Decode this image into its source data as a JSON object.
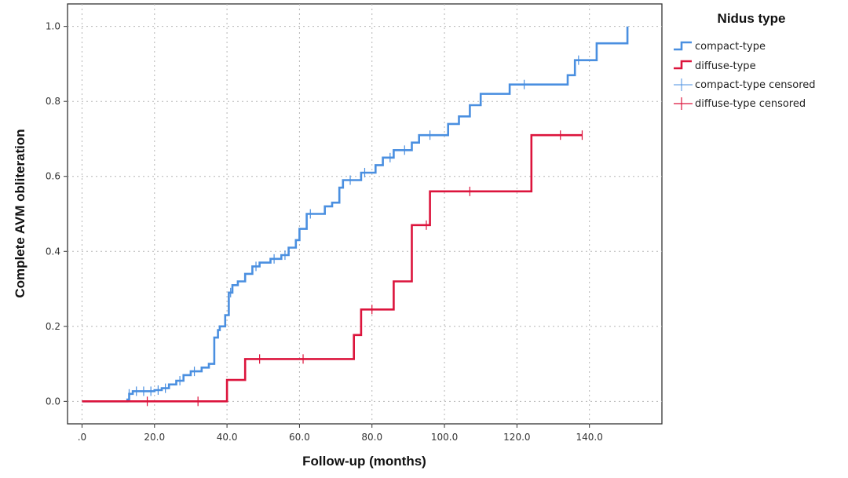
{
  "chart_data": {
    "type": "line",
    "step": true,
    "xlabel": "Follow-up (months)",
    "ylabel": "Complete AVM obliteration",
    "xlim": [
      -4,
      160
    ],
    "ylim": [
      -0.06,
      1.06
    ],
    "x_ticks": [
      0,
      20,
      40,
      60,
      80,
      100,
      120,
      140
    ],
    "x_tick_labels": [
      ".0",
      "20.0",
      "40.0",
      "60.0",
      "80.0",
      "100.0",
      "120.0",
      "140.0"
    ],
    "y_ticks": [
      0,
      0.2,
      0.4,
      0.6,
      0.8,
      1.0
    ],
    "y_tick_labels": [
      "0.0",
      "0.2",
      "0.4",
      "0.6",
      "0.8",
      "1.0"
    ],
    "grid": true,
    "legend": {
      "title": "Nidus type",
      "placement": "right",
      "entries": [
        "compact-type",
        "diffuse-type",
        "compact-type censored",
        "diffuse-type censored"
      ]
    },
    "series": [
      {
        "name": "compact-type",
        "color": "#4a8fe0",
        "steps": [
          [
            0,
            0
          ],
          [
            12.5,
            0.005
          ],
          [
            13,
            0.02
          ],
          [
            14,
            0.027
          ],
          [
            20,
            0.03
          ],
          [
            22,
            0.035
          ],
          [
            24,
            0.045
          ],
          [
            26,
            0.055
          ],
          [
            28,
            0.07
          ],
          [
            30,
            0.08
          ],
          [
            33,
            0.09
          ],
          [
            35,
            0.1
          ],
          [
            36.5,
            0.17
          ],
          [
            37.5,
            0.19
          ],
          [
            38,
            0.2
          ],
          [
            39.5,
            0.23
          ],
          [
            40.5,
            0.29
          ],
          [
            41.5,
            0.31
          ],
          [
            43,
            0.32
          ],
          [
            45,
            0.34
          ],
          [
            47,
            0.36
          ],
          [
            49,
            0.37
          ],
          [
            52,
            0.38
          ],
          [
            55,
            0.39
          ],
          [
            57,
            0.41
          ],
          [
            59,
            0.43
          ],
          [
            60,
            0.46
          ],
          [
            62,
            0.5
          ],
          [
            67,
            0.52
          ],
          [
            69,
            0.53
          ],
          [
            71,
            0.57
          ],
          [
            72,
            0.59
          ],
          [
            77,
            0.61
          ],
          [
            81,
            0.63
          ],
          [
            83,
            0.65
          ],
          [
            86,
            0.67
          ],
          [
            91,
            0.69
          ],
          [
            93,
            0.71
          ],
          [
            101,
            0.74
          ],
          [
            104,
            0.76
          ],
          [
            107,
            0.79
          ],
          [
            110,
            0.82
          ],
          [
            118,
            0.845
          ],
          [
            134,
            0.87
          ],
          [
            136,
            0.91
          ],
          [
            142,
            0.955
          ],
          [
            150.5,
            1.0
          ]
        ],
        "end": 150.5,
        "censored": [
          13,
          15,
          17,
          19,
          21,
          23,
          27,
          31,
          41,
          48,
          53,
          56,
          63,
          74,
          78,
          85,
          89,
          96,
          122,
          137
        ]
      },
      {
        "name": "diffuse-type",
        "color": "#dc143c",
        "steps": [
          [
            0,
            0
          ],
          [
            40,
            0.057
          ],
          [
            45,
            0.113
          ],
          [
            75,
            0.177
          ],
          [
            77,
            0.245
          ],
          [
            86,
            0.32
          ],
          [
            91,
            0.47
          ],
          [
            96,
            0.56
          ],
          [
            124,
            0.71
          ]
        ],
        "end": 138,
        "censored": [
          18,
          32,
          49,
          61,
          80,
          95,
          107,
          132,
          138
        ]
      }
    ]
  }
}
